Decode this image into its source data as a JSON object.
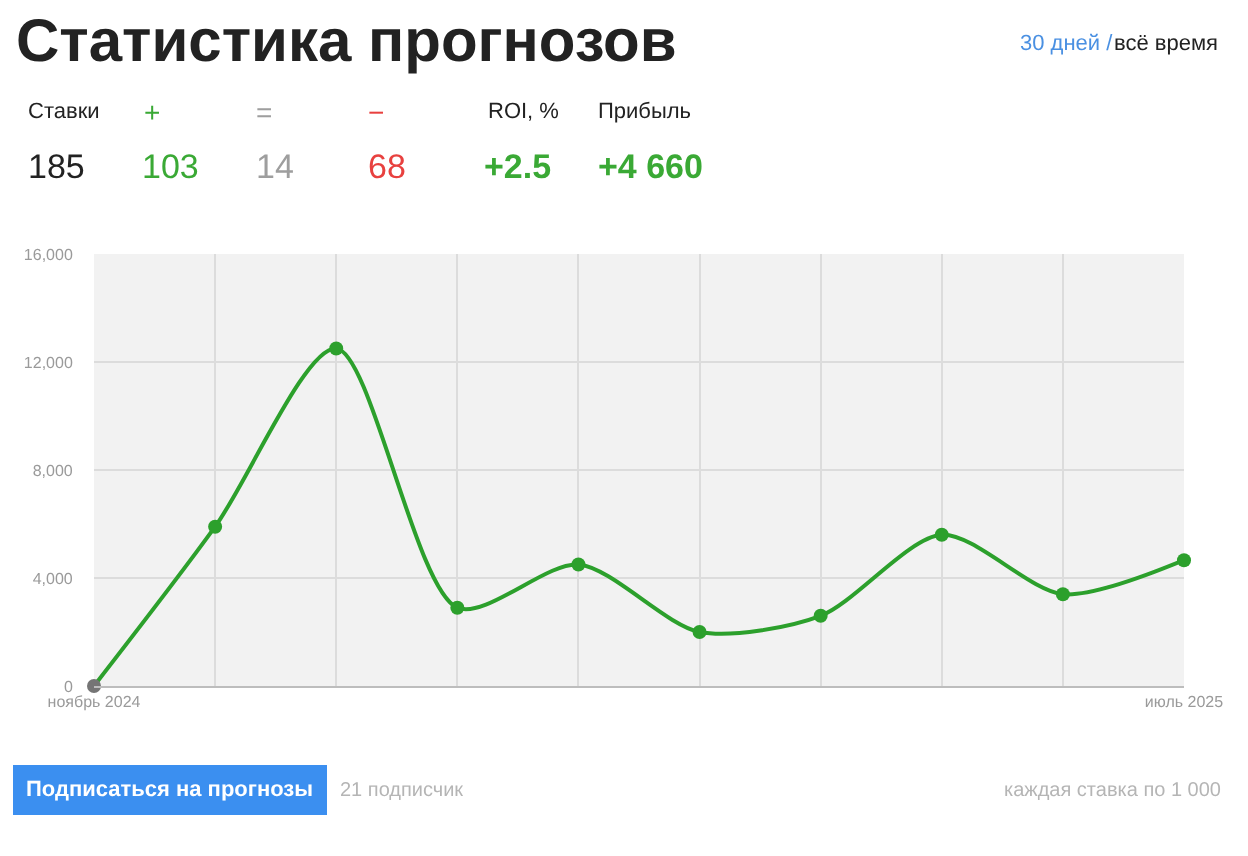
{
  "chart_data": {
    "type": "line",
    "title": "Статистика прогнозов",
    "categories": [
      "ноябрь 2024",
      null,
      null,
      null,
      null,
      null,
      null,
      null,
      null,
      "июль 2025"
    ],
    "series": [
      {
        "color": "#2ca02c",
        "colors": [
          "#757575",
          "#2ca02c",
          "#2ca02c",
          "#2ca02c",
          "#2ca02c",
          "#2ca02c",
          "#2ca02c",
          "#2ca02c",
          "#2ca02c",
          "#2ca02c"
        ],
        "values": [
          0,
          5900,
          12500,
          2900,
          4500,
          2000,
          2600,
          5600,
          3400,
          4660
        ]
      }
    ],
    "ylim": [
      0,
      16000
    ],
    "yticks": [
      0,
      {
        "value": 4000,
        "label": "4,000"
      },
      {
        "value": 8000,
        "label": "8,000"
      },
      {
        "value": 12000,
        "label": "12,000"
      },
      {
        "value": 16000,
        "label": "16,000"
      }
    ],
    "grid": true,
    "marker": "circle",
    "line_style": "solid",
    "annotations": [
      "30 дней /",
      "всё время",
      "Ставки",
      "+",
      "=",
      "−",
      "ROI, %",
      "Прибыль",
      "185",
      "103",
      "14",
      "68",
      "+2.5",
      "+4 660",
      "Подписаться на прогнозы",
      "21 подписчик",
      "каждая ставка по 1 000"
    ]
  }
}
